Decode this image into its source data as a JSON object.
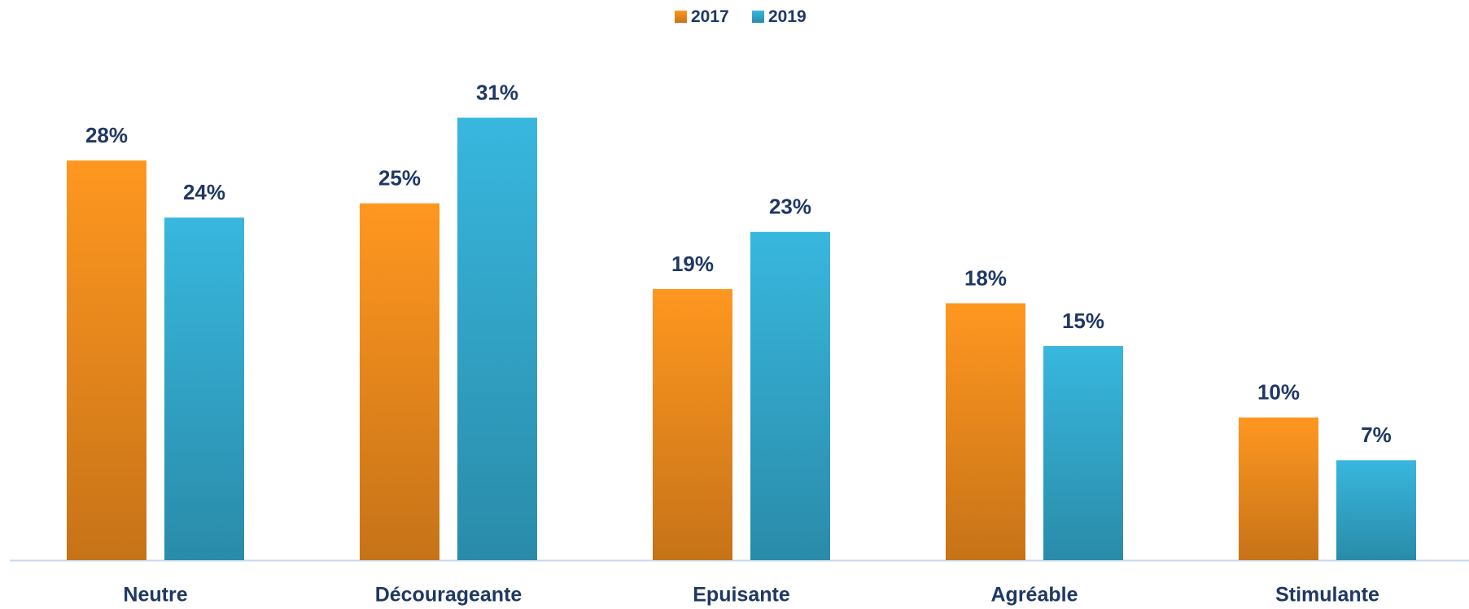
{
  "chart_data": {
    "type": "bar",
    "categories": [
      "Neutre",
      "Décourageante",
      "Epuisante",
      "Agréable",
      "Stimulante"
    ],
    "series": [
      {
        "name": "2017",
        "color": "#f7901e",
        "values": [
          28,
          25,
          19,
          18,
          10
        ],
        "value_labels": [
          "28%",
          "25%",
          "19%",
          "18%",
          "10%"
        ]
      },
      {
        "name": "2019",
        "color": "#35aed3",
        "values": [
          24,
          31,
          23,
          15,
          7
        ],
        "value_labels": [
          "24%",
          "31%",
          "23%",
          "15%",
          "7%"
        ]
      }
    ],
    "legend": "top"
  }
}
